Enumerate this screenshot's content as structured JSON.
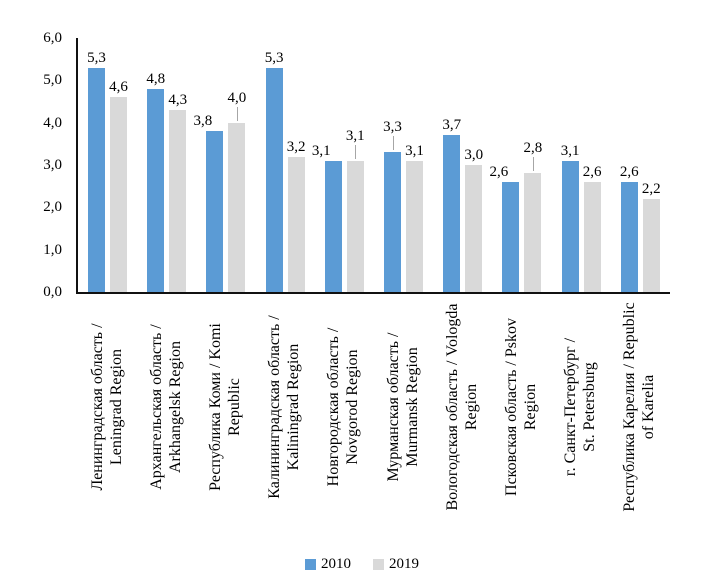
{
  "chart_data": {
    "type": "bar",
    "title": "",
    "grid": false,
    "legend_position": "bottom",
    "colors": {
      "series_2010": "#5B9BD5",
      "series_2019": "#D9D9D9",
      "axis": "#111111",
      "leader_line": "#A6A6A6",
      "text": "#000000"
    },
    "y_axis": {
      "min": 0,
      "max": 6,
      "step": 1,
      "ticks": [
        "6,0",
        "5,0",
        "4,0",
        "3,0",
        "2,0",
        "1,0",
        "0,0"
      ]
    },
    "categories": [
      {
        "line1": "Ленинградская область /",
        "line2": "Leningrad Region",
        "full": "Ленинградская область / Leningrad Region"
      },
      {
        "line1": "Архангельская область /",
        "line2": "Arkhangelsk Region",
        "full": "Архангельская область / Arkhangelsk Region"
      },
      {
        "line1": "Республика Коми / Komi",
        "line2": "Republic",
        "full": "Республика Коми / Komi Republic"
      },
      {
        "line1": "Калининградская область /",
        "line2": "Kaliningrad Region",
        "full": "Калининградская область / Kaliningrad Region"
      },
      {
        "line1": "Новгородская область /",
        "line2": "Novgorod Region",
        "full": "Новгородская область / Novgorod Region"
      },
      {
        "line1": "Мурманская область /",
        "line2": "Murmansk Region",
        "full": "Мурманская область / Murmansk Region"
      },
      {
        "line1": "Вологодская область / Vologda",
        "line2": "Region",
        "full": "Вологодская область / Vologda Region"
      },
      {
        "line1": "Псковская область / Pskov",
        "line2": "Region",
        "full": "Псковская область / Pskov Region"
      },
      {
        "line1": "г. Санкт-Петербург /",
        "line2": "St. Petersburg",
        "full": "г. Санкт-Петербург / St. Petersburg"
      },
      {
        "line1": "Республика Карелия / Republic",
        "line2": "of Karelia",
        "full": "Республика Карелия / Republic of Karelia"
      }
    ],
    "series": [
      {
        "name": "2010",
        "color": "#5B9BD5",
        "values": [
          5.3,
          4.8,
          3.8,
          5.3,
          3.1,
          3.3,
          3.7,
          2.6,
          3.1,
          2.6
        ],
        "labels": [
          "5,3",
          "4,8",
          "3,8",
          "5,3",
          "3,1",
          "3,3",
          "3,7",
          "2,6",
          "3,1",
          "2,6"
        ]
      },
      {
        "name": "2019",
        "color": "#D9D9D9",
        "values": [
          4.6,
          4.3,
          4.0,
          3.2,
          3.1,
          3.1,
          3.0,
          2.8,
          2.6,
          2.2
        ],
        "labels": [
          "4,6",
          "4,3",
          "4,0",
          "3,2",
          "3,1",
          "3,1",
          "3,0",
          "2,8",
          "2,6",
          "2,2"
        ]
      }
    ],
    "leader_labels": [
      {
        "category_index": 2,
        "series": "2019"
      },
      {
        "category_index": 4,
        "series": "2019"
      },
      {
        "category_index": 5,
        "series": "2010"
      },
      {
        "category_index": 7,
        "series": "2019"
      }
    ],
    "legend": {
      "entries": [
        "2010",
        "2019"
      ]
    }
  }
}
